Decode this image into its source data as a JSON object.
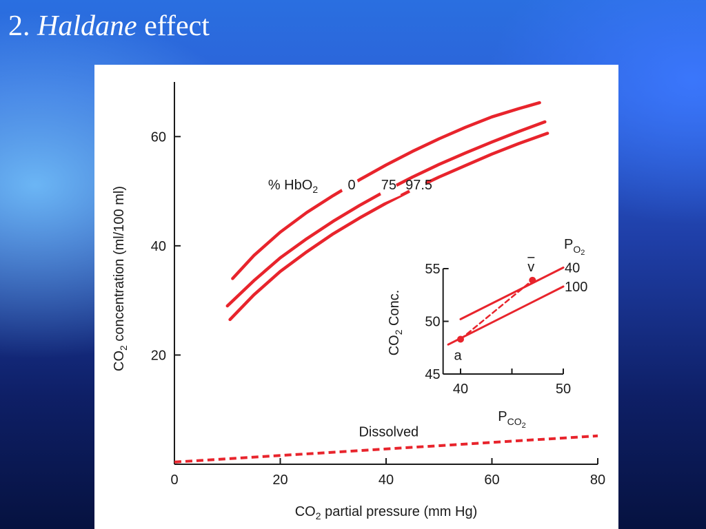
{
  "slide": {
    "title_number": "2.",
    "title_emphasis": "Haldane",
    "title_rest": "effect"
  },
  "colors": {
    "curve": "#e8242c",
    "axis": "#1a1a1a",
    "background_top": "#2a6fe0",
    "background_bottom": "#061240",
    "panel": "#ffffff"
  },
  "chart_data": [
    {
      "type": "line",
      "xlabel_main": "CO",
      "xlabel_sub": "2",
      "xlabel_rest": " partial pressure (mm Hg)",
      "ylabel_main": "CO",
      "ylabel_sub": "2",
      "ylabel_rest": " concentration (ml/100 ml)",
      "xlim": [
        0,
        80
      ],
      "ylim": [
        0,
        70
      ],
      "xticks": [
        0,
        20,
        40,
        60,
        80
      ],
      "yticks": [
        20,
        40,
        60
      ],
      "grid": false,
      "legend_prefix_main": "% HbO",
      "legend_prefix_sub": "2",
      "series": [
        {
          "name": "0",
          "x": [
            11,
            15,
            20,
            25,
            30,
            35,
            40,
            45,
            50,
            55,
            60,
            65,
            69
          ],
          "y": [
            34,
            38.2,
            42.5,
            46.1,
            49.2,
            52.1,
            54.8,
            57.3,
            59.6,
            61.7,
            63.6,
            65.1,
            66.2
          ]
        },
        {
          "name": "75",
          "x": [
            10,
            15,
            20,
            25,
            30,
            35,
            40,
            45,
            50,
            55,
            60,
            65,
            70
          ],
          "y": [
            29,
            33.6,
            37.8,
            41.3,
            44.5,
            47.4,
            50.1,
            52.6,
            54.9,
            57,
            59,
            60.9,
            62.7
          ]
        },
        {
          "name": "97.5",
          "x": [
            10.5,
            15,
            20,
            25,
            30,
            35,
            40,
            45,
            50,
            55,
            60,
            65,
            70.5
          ],
          "y": [
            26.5,
            31,
            35.3,
            38.9,
            42.2,
            45.1,
            47.8,
            50.3,
            52.6,
            54.7,
            56.8,
            58.7,
            60.6
          ]
        },
        {
          "name": "Dissolved",
          "style": "dashed",
          "x": [
            0,
            80
          ],
          "y": [
            0.4,
            5.2
          ]
        }
      ]
    },
    {
      "type": "line",
      "inset": true,
      "xlabel_main": "P",
      "xlabel_sub": "CO",
      "xlabel_sub2": "2",
      "ylabel_main": "CO",
      "ylabel_sub": "2",
      "ylabel_rest": " Conc.",
      "legend_title_main": "P",
      "legend_title_sub": "O",
      "legend_title_sub2": "2",
      "xlim": [
        40,
        50
      ],
      "ylim": [
        45,
        55
      ],
      "xticks": [
        40,
        50
      ],
      "x_minor_ticks": [
        45
      ],
      "yticks": [
        45,
        50,
        55
      ],
      "grid": false,
      "series": [
        {
          "name": "40",
          "x": [
            40,
            50
          ],
          "y": [
            50.2,
            55.1
          ]
        },
        {
          "name": "100",
          "x": [
            38.8,
            50
          ],
          "y": [
            47.8,
            53.3
          ]
        },
        {
          "name": "",
          "style": "dashed",
          "x": [
            40,
            47
          ],
          "y": [
            48.3,
            53.9
          ]
        }
      ],
      "points": [
        {
          "label": "a",
          "x": 40,
          "y": 48.3
        },
        {
          "label": "v",
          "label_decoration": "bar",
          "x": 47,
          "y": 53.9
        }
      ]
    }
  ]
}
